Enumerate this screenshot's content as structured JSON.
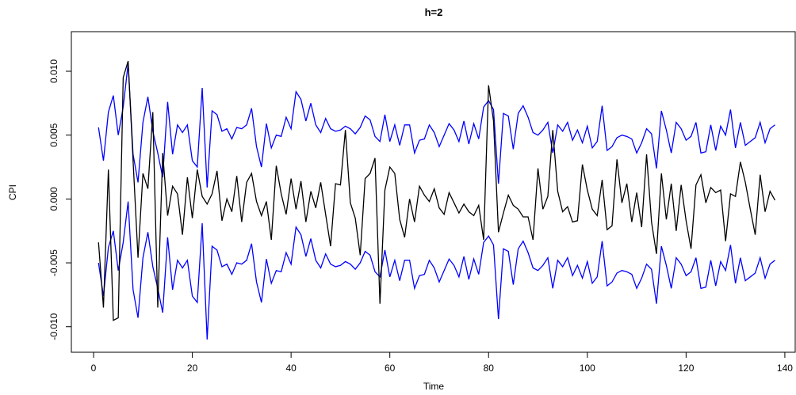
{
  "chart_data": {
    "type": "line",
    "title": "h=2",
    "xlabel": "Time",
    "ylabel": "CPI",
    "x": [
      1,
      2,
      3,
      4,
      5,
      6,
      7,
      8,
      9,
      10,
      11,
      12,
      13,
      14,
      15,
      16,
      17,
      18,
      19,
      20,
      21,
      22,
      23,
      24,
      25,
      26,
      27,
      28,
      29,
      30,
      31,
      32,
      33,
      34,
      35,
      36,
      37,
      38,
      39,
      40,
      41,
      42,
      43,
      44,
      45,
      46,
      47,
      48,
      49,
      50,
      51,
      52,
      53,
      54,
      55,
      56,
      57,
      58,
      59,
      60,
      61,
      62,
      63,
      64,
      65,
      66,
      67,
      68,
      69,
      70,
      71,
      72,
      73,
      74,
      75,
      76,
      77,
      78,
      79,
      80,
      81,
      82,
      83,
      84,
      85,
      86,
      87,
      88,
      89,
      90,
      91,
      92,
      93,
      94,
      95,
      96,
      97,
      98,
      99,
      100,
      101,
      102,
      103,
      104,
      105,
      106,
      107,
      108,
      109,
      110,
      111,
      112,
      113,
      114,
      115,
      116,
      117,
      118,
      119,
      120,
      121,
      122,
      123,
      124,
      125,
      126,
      127,
      128,
      129,
      130,
      131,
      132,
      133,
      134,
      135,
      136,
      137,
      138
    ],
    "series": [
      {
        "color": "#0000ff",
        "values": [
          0.0056,
          0.003,
          0.0068,
          0.0081,
          0.005,
          0.0072,
          0.0106,
          0.0035,
          0.0013,
          0.006,
          0.008,
          0.0053,
          0.0036,
          0.0017,
          0.0076,
          0.0035,
          0.0058,
          0.0052,
          0.0058,
          0.003,
          0.0025,
          0.0087,
          0.0009,
          0.0069,
          0.0066,
          0.0053,
          0.0055,
          0.0047,
          0.0056,
          0.0055,
          0.0058,
          0.0071,
          0.0041,
          0.0025,
          0.0059,
          0.004,
          0.005,
          0.0049,
          0.0064,
          0.0055,
          0.0084,
          0.0078,
          0.0061,
          0.0075,
          0.0058,
          0.0052,
          0.0063,
          0.0055,
          0.0053,
          0.0054,
          0.0057,
          0.0055,
          0.0051,
          0.0056,
          0.0065,
          0.0062,
          0.0049,
          0.0045,
          0.0066,
          0.0045,
          0.0058,
          0.0042,
          0.0058,
          0.0058,
          0.0036,
          0.0046,
          0.0047,
          0.0058,
          0.0052,
          0.0041,
          0.005,
          0.0059,
          0.0054,
          0.0045,
          0.0061,
          0.0043,
          0.0059,
          0.0047,
          0.0072,
          0.0077,
          0.007,
          0.0012,
          0.0067,
          0.0065,
          0.0039,
          0.0067,
          0.0073,
          0.0064,
          0.0052,
          0.005,
          0.0054,
          0.006,
          0.0036,
          0.0058,
          0.0053,
          0.006,
          0.0046,
          0.0054,
          0.0044,
          0.0057,
          0.004,
          0.0045,
          0.0073,
          0.0038,
          0.0041,
          0.0048,
          0.005,
          0.0049,
          0.0047,
          0.0036,
          0.0044,
          0.0055,
          0.0051,
          0.0024,
          0.0069,
          0.0054,
          0.0036,
          0.006,
          0.0055,
          0.0046,
          0.0049,
          0.006,
          0.0036,
          0.0037,
          0.0058,
          0.0038,
          0.0057,
          0.005,
          0.007,
          0.004,
          0.006,
          0.0042,
          0.0045,
          0.0048,
          0.006,
          0.0044,
          0.0055,
          0.0058
        ]
      },
      {
        "color": "#0000ff",
        "values": [
          -0.005,
          -0.0076,
          -0.0038,
          -0.0025,
          -0.0056,
          -0.0034,
          -0.0002,
          -0.0071,
          -0.0093,
          -0.0046,
          -0.0026,
          -0.0053,
          -0.007,
          -0.0089,
          -0.003,
          -0.0071,
          -0.0048,
          -0.0054,
          -0.0048,
          -0.0076,
          -0.0081,
          -0.0019,
          -0.011,
          -0.0037,
          -0.004,
          -0.0053,
          -0.0051,
          -0.0059,
          -0.005,
          -0.0051,
          -0.0048,
          -0.0035,
          -0.0065,
          -0.0081,
          -0.0047,
          -0.0066,
          -0.0056,
          -0.0057,
          -0.0042,
          -0.0051,
          -0.0022,
          -0.0028,
          -0.0045,
          -0.0031,
          -0.0048,
          -0.0054,
          -0.0043,
          -0.0051,
          -0.0053,
          -0.0052,
          -0.0049,
          -0.0051,
          -0.0055,
          -0.005,
          -0.0041,
          -0.0044,
          -0.0057,
          -0.0061,
          -0.004,
          -0.0061,
          -0.0048,
          -0.0064,
          -0.0048,
          -0.0048,
          -0.007,
          -0.006,
          -0.0059,
          -0.0048,
          -0.0054,
          -0.0065,
          -0.0056,
          -0.0047,
          -0.0052,
          -0.0061,
          -0.0045,
          -0.0063,
          -0.0047,
          -0.0059,
          -0.0034,
          -0.0029,
          -0.0036,
          -0.0094,
          -0.0039,
          -0.0041,
          -0.0067,
          -0.0039,
          -0.0033,
          -0.0042,
          -0.0054,
          -0.0056,
          -0.0052,
          -0.0046,
          -0.007,
          -0.0048,
          -0.0053,
          -0.0046,
          -0.006,
          -0.0052,
          -0.0062,
          -0.0049,
          -0.0066,
          -0.0061,
          -0.0033,
          -0.0068,
          -0.0065,
          -0.0058,
          -0.0056,
          -0.0057,
          -0.0059,
          -0.007,
          -0.0062,
          -0.0051,
          -0.0055,
          -0.0082,
          -0.0037,
          -0.0052,
          -0.007,
          -0.0046,
          -0.0051,
          -0.006,
          -0.0057,
          -0.0046,
          -0.007,
          -0.0069,
          -0.0048,
          -0.0068,
          -0.0049,
          -0.0056,
          -0.0036,
          -0.0066,
          -0.0046,
          -0.0064,
          -0.0061,
          -0.0058,
          -0.0046,
          -0.0062,
          -0.0051,
          -0.0048
        ]
      },
      {
        "color": "#000000",
        "values": [
          -0.0034,
          -0.0085,
          0.0023,
          -0.0095,
          -0.0093,
          0.0095,
          0.0108,
          0.003,
          -0.0046,
          0.002,
          0.0008,
          0.0068,
          -0.0085,
          0.0036,
          -0.0013,
          0.001,
          0.0004,
          -0.0028,
          0.0017,
          -0.0015,
          0.0023,
          0.0002,
          -0.0004,
          0.0004,
          0.0022,
          -0.0017,
          0.0,
          -0.001,
          0.0018,
          -0.0018,
          0.0013,
          0.002,
          -0.0002,
          -0.0013,
          -0.0002,
          -0.0032,
          0.0026,
          0.0004,
          -0.0012,
          0.0016,
          -0.0008,
          0.0014,
          -0.0018,
          0.0006,
          -0.0007,
          0.0013,
          -0.0012,
          -0.0037,
          0.0012,
          0.0011,
          0.0054,
          -0.0003,
          -0.0015,
          -0.0044,
          0.0016,
          0.002,
          0.0032,
          -0.0082,
          0.0007,
          0.0025,
          0.002,
          -0.0016,
          -0.003,
          0.0,
          -0.0018,
          0.001,
          0.0003,
          -0.0002,
          0.0008,
          -0.0007,
          -0.0012,
          0.0005,
          -0.0003,
          -0.0011,
          -0.0004,
          -0.001,
          -0.0013,
          -0.0005,
          -0.0032,
          0.0089,
          0.0061,
          -0.0026,
          -0.0011,
          0.0003,
          -0.0005,
          -0.0008,
          -0.0014,
          -0.0014,
          -0.0032,
          0.0024,
          -0.0008,
          0.0002,
          0.0054,
          0.0006,
          -0.001,
          -0.0006,
          -0.0018,
          -0.0017,
          0.0027,
          0.0007,
          -0.0008,
          -0.0013,
          0.0015,
          -0.0024,
          -0.0021,
          0.0031,
          -0.0003,
          0.0012,
          -0.0018,
          0.0005,
          -0.0022,
          0.0035,
          -0.0018,
          -0.0043,
          0.002,
          -0.0016,
          0.0012,
          -0.0025,
          0.0011,
          -0.0017,
          -0.0039,
          0.0011,
          0.0019,
          -0.0003,
          0.0009,
          0.0005,
          0.0007,
          -0.0033,
          0.0004,
          0.0002,
          0.0029,
          0.0013,
          -0.0008,
          -0.0028,
          0.0019,
          -0.001,
          0.0006,
          -0.0001
        ]
      }
    ],
    "xlim": [
      -4.5,
      142.1
    ],
    "xticks": [
      0,
      20,
      40,
      60,
      80,
      100,
      120,
      140
    ],
    "ylim": [
      -0.012,
      0.0131
    ],
    "yticks": [
      {
        "value": -0.01,
        "label": "-0.010"
      },
      {
        "value": -0.005,
        "label": "-0.005"
      },
      {
        "value": 0,
        "label": "0.000"
      },
      {
        "value": 0.005,
        "label": "0.005"
      },
      {
        "value": 0.01,
        "label": "0.010"
      }
    ]
  }
}
